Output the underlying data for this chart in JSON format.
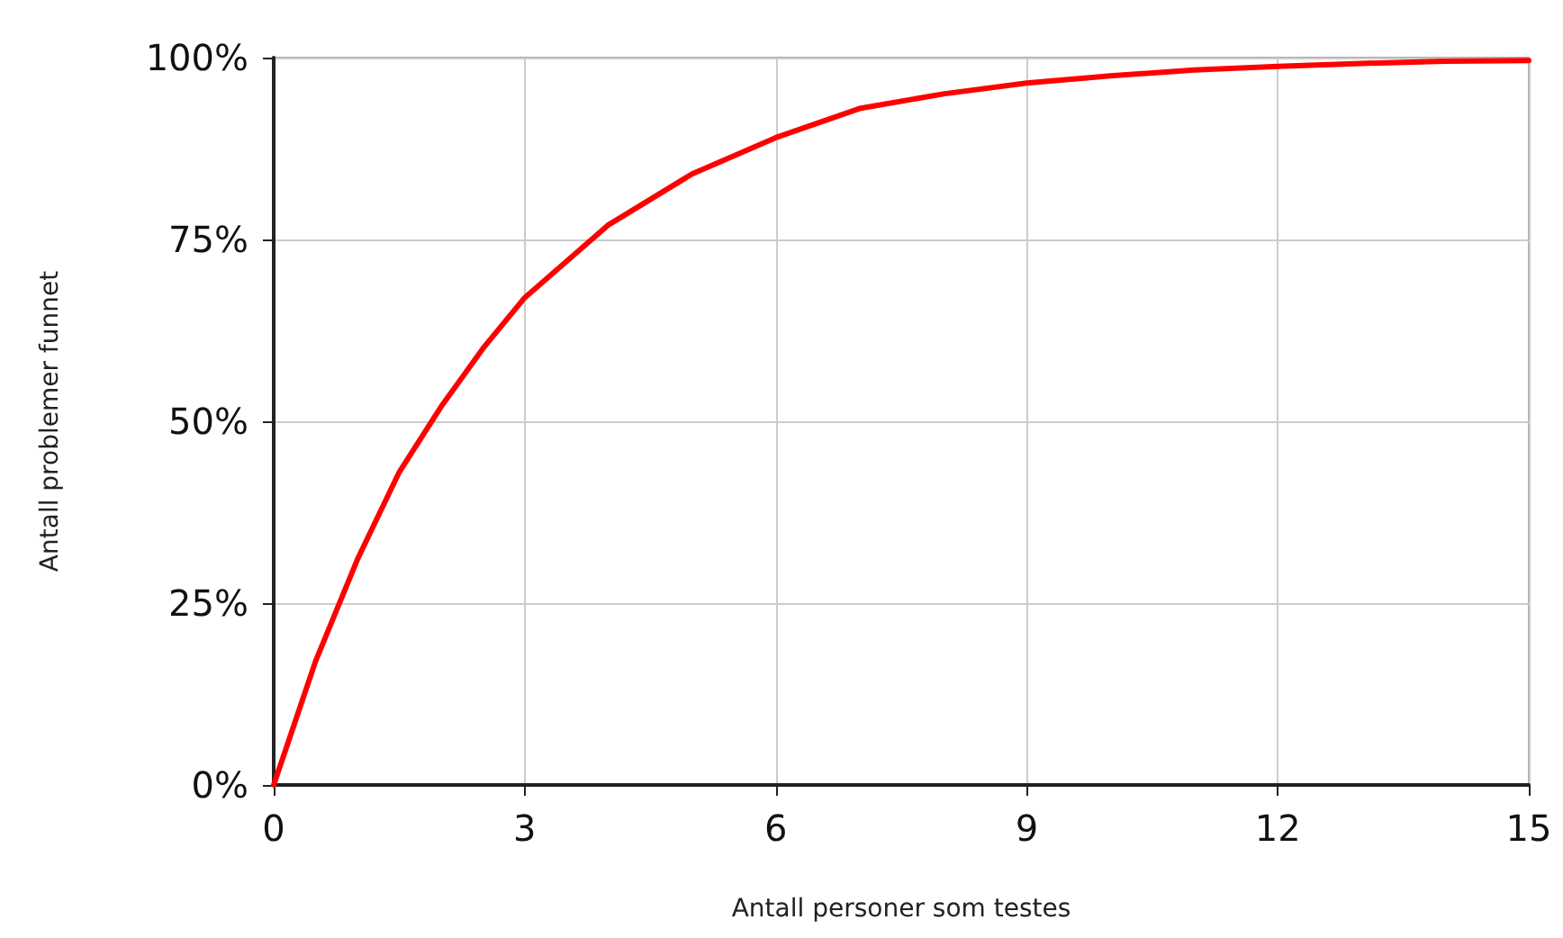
{
  "chart_data": {
    "type": "line",
    "xlabel": "Antall personer som testes",
    "ylabel": "Antall problemer funnet",
    "x": [
      0,
      0.5,
      1,
      1.5,
      2,
      2.5,
      3,
      4,
      5,
      6,
      7,
      8,
      9,
      10,
      11,
      12,
      13,
      14,
      15
    ],
    "series": [
      {
        "color": "#ff0000",
        "values": [
          0,
          17,
          31,
          43,
          52,
          60,
          67,
          77,
          84,
          89,
          93,
          95,
          96.5,
          97.5,
          98.3,
          98.8,
          99.2,
          99.5,
          99.6
        ]
      }
    ],
    "xlim": [
      0,
      15
    ],
    "xticks": [
      0,
      3,
      6,
      9,
      12,
      15
    ],
    "ylim": [
      0,
      100
    ],
    "yticks": [
      {
        "value": 0,
        "label": "0%"
      },
      {
        "value": 25,
        "label": "25%"
      },
      {
        "value": 50,
        "label": "50%"
      },
      {
        "value": 75,
        "label": "75%"
      },
      {
        "value": 100,
        "label": "100%"
      }
    ],
    "grid": true,
    "marker": "none",
    "line_style": "solid"
  }
}
